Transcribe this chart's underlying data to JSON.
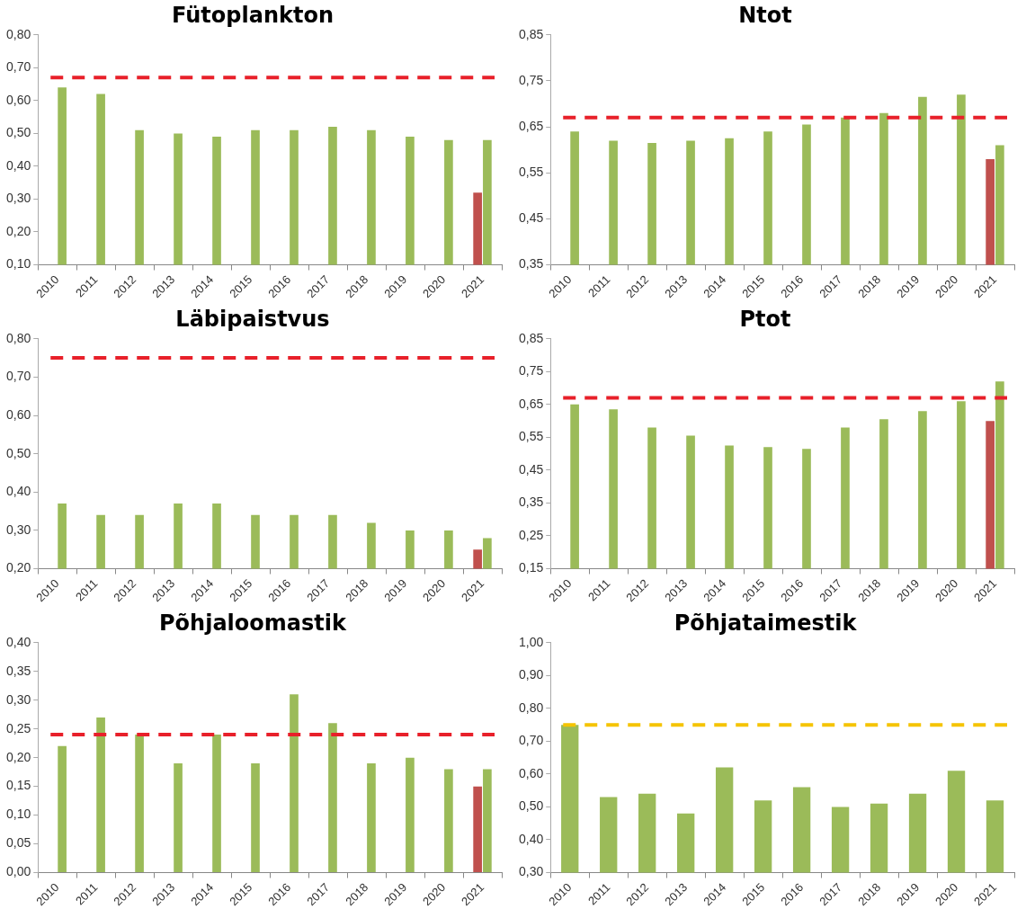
{
  "chart_data": [
    {
      "type": "bar",
      "title": "Fütoplankton",
      "categories": [
        "2010",
        "2011",
        "2012",
        "2013",
        "2014",
        "2015",
        "2016",
        "2017",
        "2018",
        "2019",
        "2020",
        "2021"
      ],
      "series": [
        {
          "color": "#c0504d",
          "values": [
            null,
            null,
            null,
            null,
            null,
            null,
            null,
            null,
            null,
            null,
            null,
            0.32
          ]
        },
        {
          "color": "#9bbb59",
          "values": [
            0.64,
            0.62,
            0.51,
            0.5,
            0.49,
            0.51,
            0.51,
            0.52,
            0.51,
            0.49,
            0.48,
            0.48
          ]
        }
      ],
      "ylim": [
        0.1,
        0.8
      ],
      "yticks": [
        {
          "value": 0.1,
          "label": "0,10"
        },
        {
          "value": 0.2,
          "label": "0,20"
        },
        {
          "value": 0.3,
          "label": "0,30"
        },
        {
          "value": 0.4,
          "label": "0,40"
        },
        {
          "value": 0.5,
          "label": "0,50"
        },
        {
          "value": 0.6,
          "label": "0,60"
        },
        {
          "value": 0.7,
          "label": "0,70"
        },
        {
          "value": 0.8,
          "label": "0,80"
        }
      ],
      "ref_lines": [
        {
          "axis": "y",
          "value": 0.67,
          "color": "#e8202a",
          "line_style": "dashed"
        }
      ],
      "legend": false
    },
    {
      "type": "bar",
      "title": "Ntot",
      "categories": [
        "2010",
        "2011",
        "2012",
        "2013",
        "2014",
        "2015",
        "2016",
        "2017",
        "2018",
        "2019",
        "2020",
        "2021"
      ],
      "series": [
        {
          "color": "#c0504d",
          "values": [
            null,
            null,
            null,
            null,
            null,
            null,
            null,
            null,
            null,
            null,
            null,
            0.58
          ]
        },
        {
          "color": "#9bbb59",
          "values": [
            0.64,
            0.62,
            0.615,
            0.62,
            0.625,
            0.64,
            0.655,
            0.67,
            0.68,
            0.715,
            0.72,
            0.61
          ]
        }
      ],
      "ylim": [
        0.35,
        0.85
      ],
      "yticks": [
        {
          "value": 0.35,
          "label": "0,35"
        },
        {
          "value": 0.45,
          "label": "0,45"
        },
        {
          "value": 0.55,
          "label": "0,55"
        },
        {
          "value": 0.65,
          "label": "0,65"
        },
        {
          "value": 0.75,
          "label": "0,75"
        },
        {
          "value": 0.85,
          "label": "0,85"
        }
      ],
      "ref_lines": [
        {
          "axis": "y",
          "value": 0.67,
          "color": "#e8202a",
          "line_style": "dashed"
        }
      ],
      "legend": false
    },
    {
      "type": "bar",
      "title": "Läbipaistvus",
      "categories": [
        "2010",
        "2011",
        "2012",
        "2013",
        "2014",
        "2015",
        "2016",
        "2017",
        "2018",
        "2019",
        "2020",
        "2021"
      ],
      "series": [
        {
          "color": "#c0504d",
          "values": [
            null,
            null,
            null,
            null,
            null,
            null,
            null,
            null,
            null,
            null,
            null,
            0.25
          ]
        },
        {
          "color": "#9bbb59",
          "values": [
            0.37,
            0.34,
            0.34,
            0.37,
            0.37,
            0.34,
            0.34,
            0.34,
            0.32,
            0.3,
            0.3,
            0.28
          ]
        }
      ],
      "ylim": [
        0.2,
        0.8
      ],
      "yticks": [
        {
          "value": 0.2,
          "label": "0,20"
        },
        {
          "value": 0.3,
          "label": "0,30"
        },
        {
          "value": 0.4,
          "label": "0,40"
        },
        {
          "value": 0.5,
          "label": "0,50"
        },
        {
          "value": 0.6,
          "label": "0,60"
        },
        {
          "value": 0.7,
          "label": "0,70"
        },
        {
          "value": 0.8,
          "label": "0,80"
        }
      ],
      "ref_lines": [
        {
          "axis": "y",
          "value": 0.75,
          "color": "#e8202a",
          "line_style": "dashed"
        }
      ],
      "legend": false
    },
    {
      "type": "bar",
      "title": "Ptot",
      "categories": [
        "2010",
        "2011",
        "2012",
        "2013",
        "2014",
        "2015",
        "2016",
        "2017",
        "2018",
        "2019",
        "2020",
        "2021"
      ],
      "series": [
        {
          "color": "#c0504d",
          "values": [
            null,
            null,
            null,
            null,
            null,
            null,
            null,
            null,
            null,
            null,
            null,
            0.6
          ]
        },
        {
          "color": "#9bbb59",
          "values": [
            0.65,
            0.635,
            0.58,
            0.555,
            0.525,
            0.52,
            0.515,
            0.58,
            0.605,
            0.63,
            0.66,
            0.72
          ]
        }
      ],
      "ylim": [
        0.15,
        0.85
      ],
      "yticks": [
        {
          "value": 0.15,
          "label": "0,15"
        },
        {
          "value": 0.25,
          "label": "0,25"
        },
        {
          "value": 0.35,
          "label": "0,35"
        },
        {
          "value": 0.45,
          "label": "0,45"
        },
        {
          "value": 0.55,
          "label": "0,55"
        },
        {
          "value": 0.65,
          "label": "0,65"
        },
        {
          "value": 0.75,
          "label": "0,75"
        },
        {
          "value": 0.85,
          "label": "0,85"
        }
      ],
      "ref_lines": [
        {
          "axis": "y",
          "value": 0.67,
          "color": "#e8202a",
          "line_style": "dashed"
        }
      ],
      "legend": false
    },
    {
      "type": "bar",
      "title": "Põhjaloomastik",
      "categories": [
        "2010",
        "2011",
        "2012",
        "2013",
        "2014",
        "2015",
        "2016",
        "2017",
        "2018",
        "2019",
        "2020",
        "2021"
      ],
      "series": [
        {
          "color": "#c0504d",
          "values": [
            null,
            null,
            null,
            null,
            null,
            null,
            null,
            null,
            null,
            null,
            null,
            0.15
          ]
        },
        {
          "color": "#9bbb59",
          "values": [
            0.22,
            0.27,
            0.24,
            0.19,
            0.24,
            0.19,
            0.31,
            0.26,
            0.19,
            0.2,
            0.18,
            0.18
          ]
        }
      ],
      "ylim": [
        0,
        0.4
      ],
      "yticks": [
        {
          "value": 0,
          "label": "0,00"
        },
        {
          "value": 0.05,
          "label": "0,05"
        },
        {
          "value": 0.1,
          "label": "0,10"
        },
        {
          "value": 0.15,
          "label": "0,15"
        },
        {
          "value": 0.2,
          "label": "0,20"
        },
        {
          "value": 0.25,
          "label": "0,25"
        },
        {
          "value": 0.3,
          "label": "0,30"
        },
        {
          "value": 0.35,
          "label": "0,35"
        },
        {
          "value": 0.4,
          "label": "0,40"
        }
      ],
      "ref_lines": [
        {
          "axis": "y",
          "value": 0.24,
          "color": "#e8202a",
          "line_style": "dashed"
        }
      ],
      "legend": false
    },
    {
      "type": "bar",
      "title": "Põhjataimestik",
      "categories": [
        "2010",
        "2011",
        "2012",
        "2013",
        "2014",
        "2015",
        "2016",
        "2017",
        "2018",
        "2019",
        "2020",
        "2021"
      ],
      "series": [
        {
          "color": "#9bbb59",
          "values": [
            0.75,
            0.53,
            0.54,
            0.48,
            0.62,
            0.52,
            0.56,
            0.5,
            0.51,
            0.54,
            0.61,
            0.52
          ]
        }
      ],
      "ylim": [
        0.3,
        1.0
      ],
      "yticks": [
        {
          "value": 0.3,
          "label": "0,30"
        },
        {
          "value": 0.4,
          "label": "0,40"
        },
        {
          "value": 0.5,
          "label": "0,50"
        },
        {
          "value": 0.6,
          "label": "0,60"
        },
        {
          "value": 0.7,
          "label": "0,70"
        },
        {
          "value": 0.8,
          "label": "0,80"
        },
        {
          "value": 0.9,
          "label": "0,90"
        },
        {
          "value": 1.0,
          "label": "1,00"
        }
      ],
      "ref_lines": [
        {
          "axis": "y",
          "value": 0.75,
          "color": "#f5c400",
          "line_style": "dashed"
        }
      ],
      "legend": false
    }
  ]
}
